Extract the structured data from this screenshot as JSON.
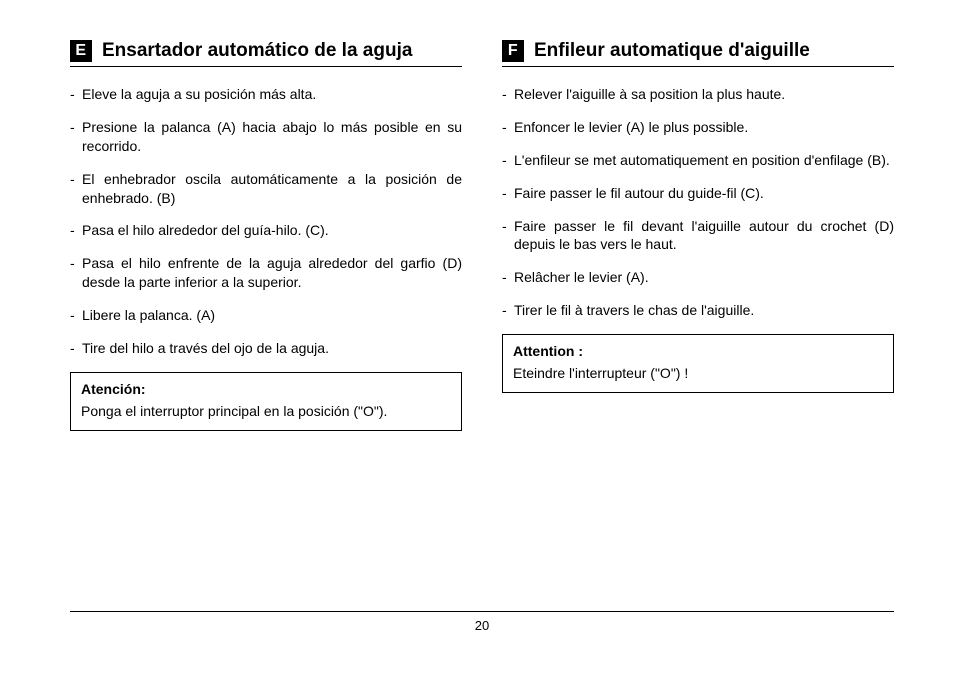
{
  "page_number": "20",
  "left": {
    "lang_letter": "E",
    "title": "Ensartador automático de la aguja",
    "items": [
      "Eleve la aguja a su posición más alta.",
      "Presione la palanca (A) hacia abajo lo más posible en su recorrido.",
      "El enhebrador oscila automáticamente a la posición de enhebrado. (B)",
      "Pasa el hilo alrededor del guía-hilo. (C).",
      "Pasa el hilo enfrente de la aguja alrededor del garfio (D) desde la parte inferior a la superior.",
      "Libere la palanca. (A)",
      "Tire del hilo a través del ojo de la aguja."
    ],
    "callout_label": "Atención:",
    "callout_text": "Ponga el interruptor principal en la posición (\"O\")."
  },
  "right": {
    "lang_letter": "F",
    "title": "Enfileur automatique d'aiguille",
    "items": [
      "Relever l'aiguille à sa position la plus haute.",
      "Enfoncer le levier (A) le plus possible.",
      "L'enfileur se met automatiquement en position d'enfilage (B).",
      "Faire passer le fil autour du guide-fil (C).",
      "Faire passer le fil devant l'aiguille autour du crochet (D) depuis le bas vers le haut.",
      "Relâcher le levier (A).",
      "Tirer le fil à travers le chas de l'aiguille."
    ],
    "callout_label": "Attention :",
    "callout_text": "Eteindre l'interrupteur (\"O\") !"
  }
}
